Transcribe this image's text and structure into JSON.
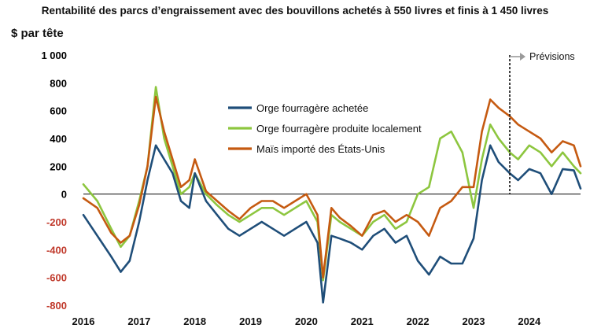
{
  "chart_data": {
    "type": "line",
    "title": "Rentabilité des parcs d’engraissement avec des bouvillons achetés à 550 livres et finis à 1 450 livres",
    "ylabel": "$ par tête",
    "xlabel": "",
    "ylim": [
      -800,
      1000
    ],
    "xlim": [
      2016.0,
      2024.92
    ],
    "grid": false,
    "legend_position": "center",
    "x_ticks": [
      {
        "value": 2016,
        "label": "2016"
      },
      {
        "value": 2017,
        "label": "2017"
      },
      {
        "value": 2018,
        "label": "2018"
      },
      {
        "value": 2019,
        "label": "2019"
      },
      {
        "value": 2020,
        "label": "2020"
      },
      {
        "value": 2021,
        "label": "2021"
      },
      {
        "value": 2022,
        "label": "2022"
      },
      {
        "value": 2023,
        "label": "2023"
      },
      {
        "value": 2024,
        "label": "2024"
      }
    ],
    "y_ticks": [
      {
        "value": 1000,
        "label": "1 000",
        "color": "#000000"
      },
      {
        "value": 800,
        "label": "800",
        "color": "#000000"
      },
      {
        "value": 600,
        "label": "600",
        "color": "#000000"
      },
      {
        "value": 400,
        "label": "400",
        "color": "#000000"
      },
      {
        "value": 200,
        "label": "200",
        "color": "#000000"
      },
      {
        "value": 0,
        "label": "0",
        "color": "#000000"
      },
      {
        "value": -200,
        "label": "-200",
        "color": "#c0392b"
      },
      {
        "value": -400,
        "label": "-400",
        "color": "#c0392b"
      },
      {
        "value": -600,
        "label": "-600",
        "color": "#c0392b"
      },
      {
        "value": -800,
        "label": "-800",
        "color": "#c0392b"
      }
    ],
    "annotation": {
      "label": "Prévisions",
      "x": 2023.65
    },
    "x": [
      2016.0,
      2016.25,
      2016.5,
      2016.67,
      2016.83,
      2017.0,
      2017.15,
      2017.3,
      2017.45,
      2017.6,
      2017.75,
      2017.9,
      2018.0,
      2018.2,
      2018.4,
      2018.6,
      2018.8,
      2019.0,
      2019.2,
      2019.4,
      2019.6,
      2019.8,
      2020.0,
      2020.2,
      2020.3,
      2020.45,
      2020.6,
      2020.8,
      2021.0,
      2021.2,
      2021.4,
      2021.6,
      2021.8,
      2022.0,
      2022.2,
      2022.4,
      2022.6,
      2022.8,
      2023.0,
      2023.15,
      2023.3,
      2023.45,
      2023.65,
      2023.8,
      2024.0,
      2024.2,
      2024.4,
      2024.6,
      2024.8,
      2024.92
    ],
    "series": [
      {
        "name": "Orge fourragère achetée",
        "color": "#1f4e79",
        "values": [
          -150,
          -300,
          -450,
          -560,
          -480,
          -200,
          100,
          350,
          250,
          150,
          -50,
          -100,
          150,
          -50,
          -150,
          -250,
          -300,
          -250,
          -200,
          -250,
          -300,
          -250,
          -200,
          -350,
          -780,
          -300,
          -320,
          -350,
          -400,
          -300,
          -250,
          -350,
          -300,
          -480,
          -580,
          -450,
          -500,
          -500,
          -320,
          100,
          350,
          230,
          150,
          100,
          180,
          150,
          0,
          180,
          170,
          40
        ]
      },
      {
        "name": "Orge fourragère produite localement",
        "color": "#8dc63f",
        "values": [
          70,
          -50,
          -250,
          -380,
          -300,
          -50,
          200,
          770,
          400,
          200,
          0,
          50,
          150,
          0,
          -80,
          -150,
          -200,
          -150,
          -100,
          -100,
          -150,
          -100,
          -50,
          -200,
          -620,
          -150,
          -200,
          -250,
          -300,
          -200,
          -150,
          -250,
          -200,
          0,
          50,
          400,
          450,
          300,
          -100,
          250,
          500,
          400,
          300,
          250,
          350,
          300,
          200,
          300,
          200,
          150
        ]
      },
      {
        "name": "Maïs importé des États-Unis",
        "color": "#c55a11",
        "values": [
          -30,
          -100,
          -280,
          -350,
          -300,
          -80,
          200,
          700,
          450,
          250,
          50,
          100,
          250,
          20,
          -50,
          -120,
          -180,
          -100,
          -50,
          -50,
          -100,
          -50,
          0,
          -150,
          -600,
          -100,
          -170,
          -230,
          -300,
          -150,
          -120,
          -200,
          -150,
          -200,
          -300,
          -100,
          -50,
          50,
          50,
          450,
          680,
          620,
          560,
          500,
          450,
          400,
          300,
          380,
          350,
          200
        ]
      }
    ]
  }
}
